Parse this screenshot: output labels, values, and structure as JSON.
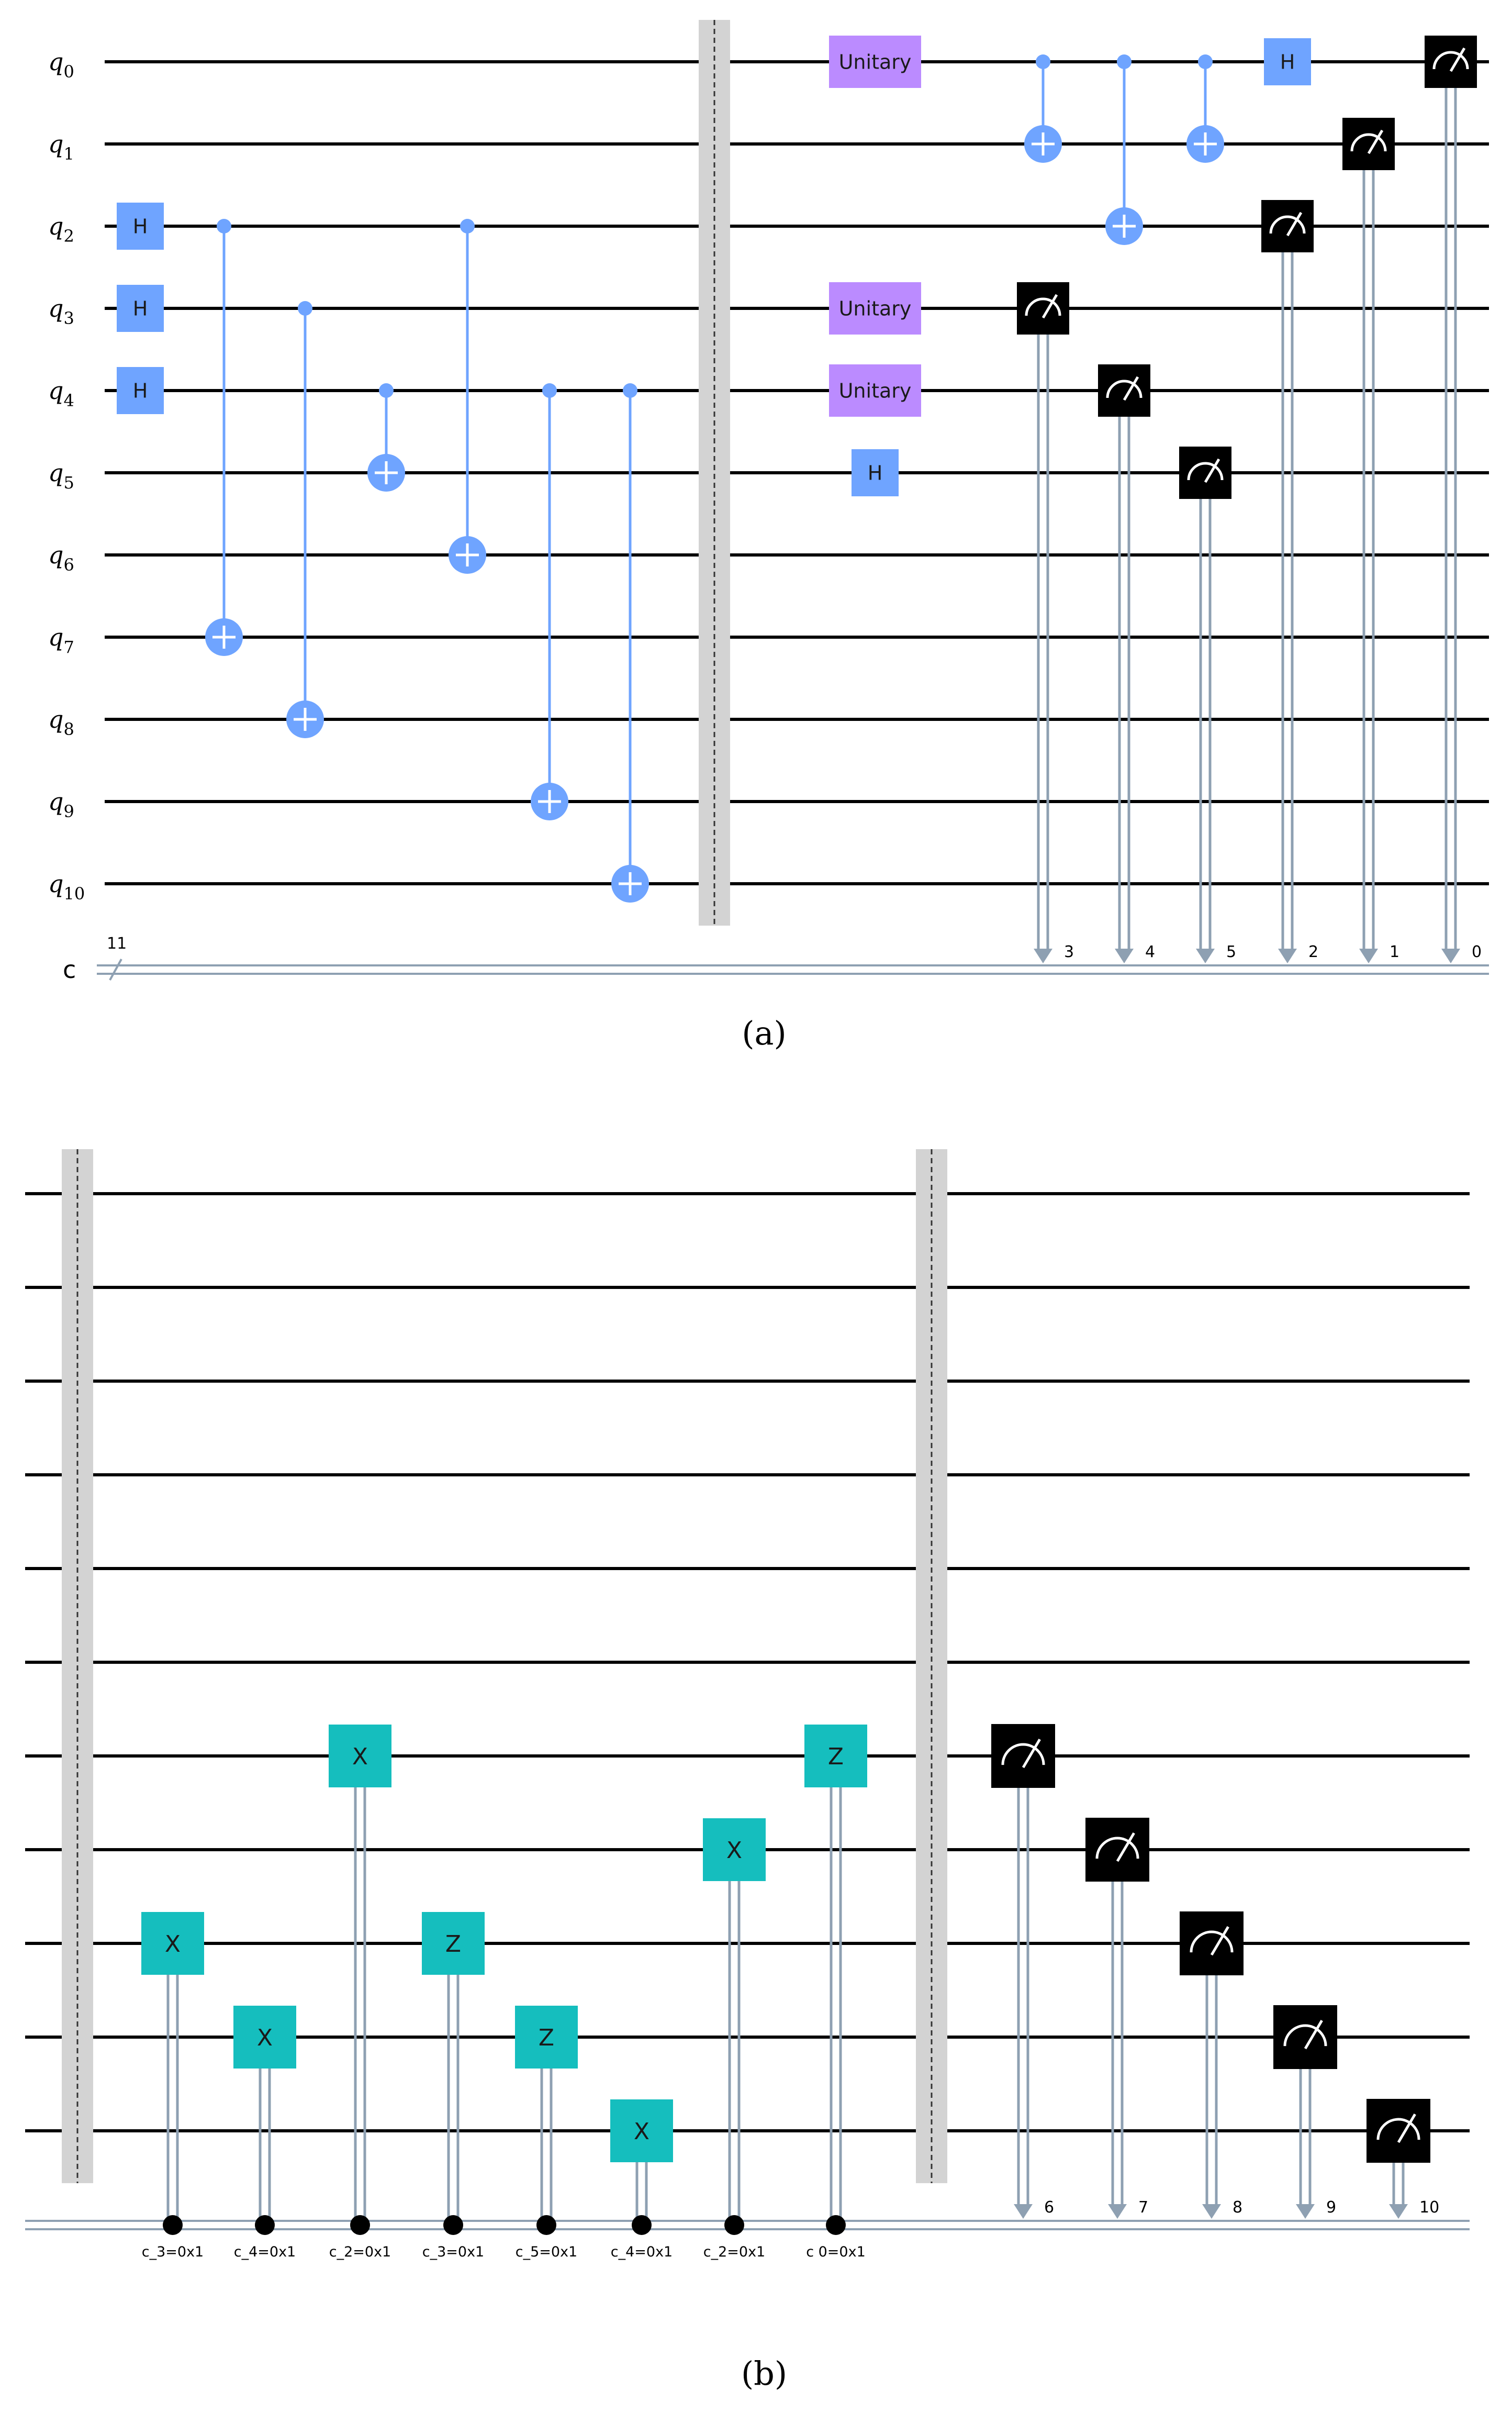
{
  "panel_a": {
    "caption": "(a)",
    "qubit_labels": [
      {
        "main": "q",
        "sub": "0"
      },
      {
        "main": "q",
        "sub": "1"
      },
      {
        "main": "q",
        "sub": "2"
      },
      {
        "main": "q",
        "sub": "3"
      },
      {
        "main": "q",
        "sub": "4"
      },
      {
        "main": "q",
        "sub": "5"
      },
      {
        "main": "q",
        "sub": "6"
      },
      {
        "main": "q",
        "sub": "7"
      },
      {
        "main": "q",
        "sub": "8"
      },
      {
        "main": "q",
        "sub": "9"
      },
      {
        "main": "q",
        "sub": "10"
      }
    ],
    "classical_label": "c",
    "classical_width": "11",
    "gates": [
      {
        "type": "H",
        "label": "H",
        "qubit": 2,
        "col": 0
      },
      {
        "type": "H",
        "label": "H",
        "qubit": 3,
        "col": 0
      },
      {
        "type": "H",
        "label": "H",
        "qubit": 4,
        "col": 0
      },
      {
        "type": "cx",
        "control": 2,
        "target": 7,
        "col": 1
      },
      {
        "type": "cx",
        "control": 3,
        "target": 8,
        "col": 2
      },
      {
        "type": "cx",
        "control": 4,
        "target": 5,
        "col": 3
      },
      {
        "type": "cx",
        "control": 2,
        "target": 6,
        "col": 4
      },
      {
        "type": "cx",
        "control": 4,
        "target": 9,
        "col": 5
      },
      {
        "type": "cx",
        "control": 4,
        "target": 10,
        "col": 6
      },
      {
        "type": "barrier",
        "col": 7
      },
      {
        "type": "unitary",
        "label": "Unitary",
        "qubit": 0,
        "col": 8
      },
      {
        "type": "unitary",
        "label": "Unitary",
        "qubit": 3,
        "col": 8
      },
      {
        "type": "unitary",
        "label": "Unitary",
        "qubit": 4,
        "col": 8
      },
      {
        "type": "H",
        "label": "H",
        "qubit": 5,
        "col": 8
      },
      {
        "type": "measure",
        "qubit": 3,
        "bit": "3",
        "col": 9
      },
      {
        "type": "cx",
        "control": 0,
        "target": 1,
        "col": 9
      },
      {
        "type": "measure",
        "qubit": 4,
        "bit": "4",
        "col": 10
      },
      {
        "type": "cx",
        "control": 0,
        "target": 2,
        "col": 10
      },
      {
        "type": "measure",
        "qubit": 5,
        "bit": "5",
        "col": 11
      },
      {
        "type": "cx",
        "control": 0,
        "target": 1,
        "col": 11
      },
      {
        "type": "measure",
        "qubit": 2,
        "bit": "2",
        "col": 12
      },
      {
        "type": "H",
        "label": "H",
        "qubit": 0,
        "col": 12
      },
      {
        "type": "measure",
        "qubit": 1,
        "bit": "1",
        "col": 13
      },
      {
        "type": "measure",
        "qubit": 0,
        "bit": "0",
        "col": 14
      }
    ]
  },
  "panel_b": {
    "caption": "(b)",
    "gates": [
      {
        "type": "barrier",
        "col": 0
      },
      {
        "type": "cX",
        "label": "X",
        "qubit": 8,
        "condition": "c_3=0x1",
        "col": 1
      },
      {
        "type": "cX",
        "label": "X",
        "qubit": 9,
        "condition": "c_4=0x1",
        "col": 2
      },
      {
        "type": "cX",
        "label": "X",
        "qubit": 6,
        "condition": "c_2=0x1",
        "col": 3
      },
      {
        "type": "cZ",
        "label": "Z",
        "qubit": 8,
        "condition": "c_3=0x1",
        "col": 4
      },
      {
        "type": "cZ",
        "label": "Z",
        "qubit": 9,
        "condition": "c_5=0x1",
        "col": 5
      },
      {
        "type": "cX",
        "label": "X",
        "qubit": 10,
        "condition": "c_4=0x1",
        "col": 6
      },
      {
        "type": "cX",
        "label": "X",
        "qubit": 7,
        "condition": "c_2=0x1",
        "col": 7
      },
      {
        "type": "cZ",
        "label": "Z",
        "qubit": 6,
        "condition": "c 0=0x1",
        "col": 8
      },
      {
        "type": "barrier",
        "col": 9
      },
      {
        "type": "measure",
        "qubit": 6,
        "bit": "6",
        "col": 10
      },
      {
        "type": "measure",
        "qubit": 7,
        "bit": "7",
        "col": 11
      },
      {
        "type": "measure",
        "qubit": 8,
        "bit": "8",
        "col": 12
      },
      {
        "type": "measure",
        "qubit": 9,
        "bit": "9",
        "col": 13
      },
      {
        "type": "measure",
        "qubit": 10,
        "bit": "10",
        "col": 14
      }
    ]
  },
  "colors": {
    "hadamard": "#6fa4ff",
    "cnot": "#6fa4ff",
    "unitary": "#bb8bff",
    "classical_gate": "#15bebe",
    "measure": "#000000",
    "classical_wire": "#8ea0b2",
    "barrier": "#d3d3d3"
  }
}
